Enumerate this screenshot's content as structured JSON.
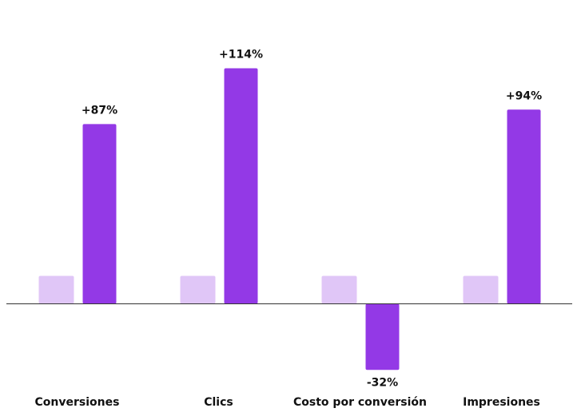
{
  "chart_data": {
    "type": "bar",
    "categories": [
      "Conversiones",
      "Clics",
      "Costo por conversión",
      "Impresiones"
    ],
    "values": [
      87,
      114,
      -32,
      94
    ],
    "value_labels": [
      "+87%",
      "+114%",
      "-32%",
      "+94%"
    ],
    "color": "#9339e6",
    "ylim": [
      -40,
      120
    ]
  }
}
